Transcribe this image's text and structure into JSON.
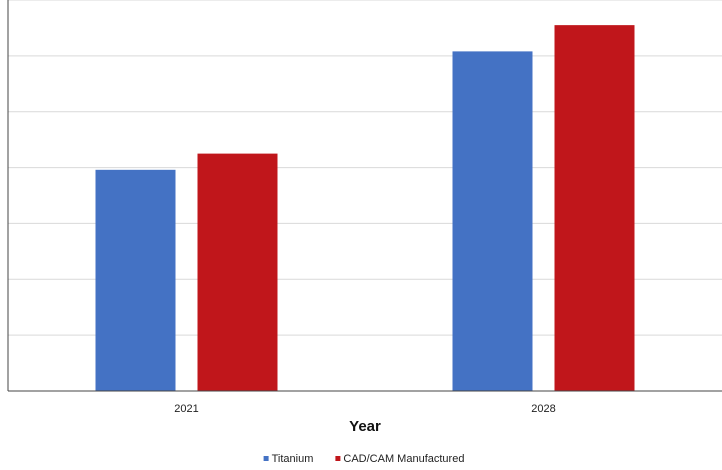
{
  "chart_data": {
    "type": "bar",
    "title": "",
    "xlabel": "Year",
    "ylabel": "",
    "categories": [
      "2021",
      "2028"
    ],
    "series": [
      {
        "name": "Titanium",
        "color": "#4472c4",
        "values": [
          3.96,
          6.08
        ]
      },
      {
        "name": "CAD/CAM Manufactured",
        "color": "#c0161b",
        "values": [
          4.25,
          6.55
        ]
      }
    ],
    "ylim": [
      0,
      7
    ],
    "grid": true,
    "legend_position": "bottom-center"
  }
}
